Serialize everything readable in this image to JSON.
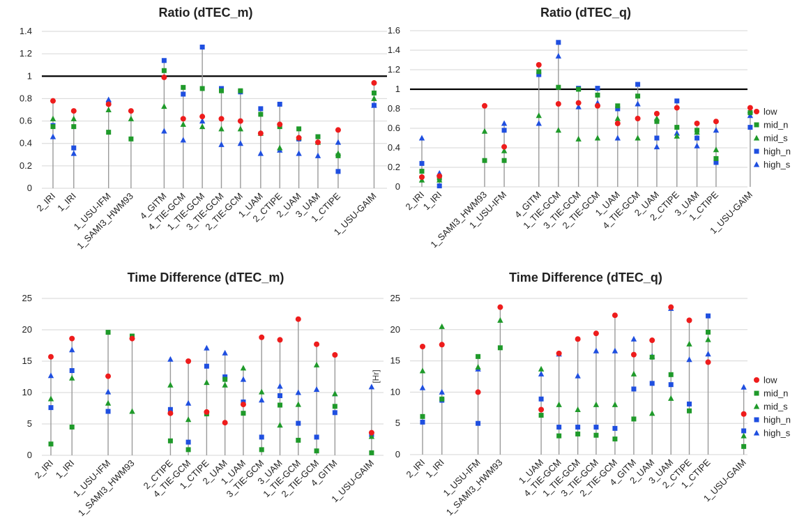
{
  "charts_meta": {
    "colors": {
      "low": "#ee1c1c",
      "mid_n": "#1f9a2a",
      "mid_s": "#1f9a2a",
      "high_n": "#1f4fe0",
      "high_s": "#1f4fe0"
    },
    "series_order": [
      "low",
      "mid_n",
      "mid_s",
      "high_n",
      "high_s"
    ],
    "legend_labels": [
      "low",
      "mid_n",
      "mid_s",
      "high_n",
      "high_s"
    ]
  },
  "chart_data": [
    {
      "type": "scatter",
      "title": "Ratio (dTEC_m)",
      "ylabel": "",
      "ylim": [
        0,
        1.4
      ],
      "yticks": [
        0,
        0.2,
        0.4,
        0.6,
        0.8,
        1,
        1.2,
        1.4
      ],
      "ytick_labels": [
        "0",
        "0.2",
        "0.4",
        "0.6",
        "0.8",
        "1",
        "1.2",
        "1.4"
      ],
      "reference_line": 1,
      "legend": false,
      "categories": [
        "2_IRI",
        "1_IRI",
        "1_USU-IFM",
        "1_SAMI3_HWM93",
        "4_GITM",
        "4_TIE-GCM",
        "1_TIE-GCM",
        "3_TIE-GCM",
        "2_TIE-GCM",
        "1_UAM",
        "2_CTIPE",
        "2_UAM",
        "3_UAM",
        "1_CTIPE",
        "1_USU-GAIM"
      ],
      "series": [
        {
          "name": "low",
          "values": [
            0.78,
            0.69,
            0.75,
            0.69,
            0.99,
            0.62,
            0.64,
            0.62,
            0.6,
            0.49,
            0.57,
            0.45,
            0.41,
            0.52,
            0.94
          ]
        },
        {
          "name": "mid_n",
          "values": [
            0.55,
            0.55,
            0.5,
            0.44,
            1.05,
            0.9,
            0.89,
            0.87,
            0.87,
            0.66,
            0.55,
            0.53,
            0.46,
            0.29,
            0.85
          ]
        },
        {
          "name": "mid_s",
          "values": [
            0.62,
            0.62,
            0.7,
            0.62,
            0.73,
            0.57,
            0.55,
            0.53,
            0.53,
            0.49,
            0.36,
            0.45,
            0.41,
            0.31,
            0.8
          ]
        },
        {
          "name": "high_n",
          "values": [
            0.56,
            0.36,
            0.76,
            null,
            1.14,
            0.84,
            1.26,
            0.89,
            0.86,
            0.71,
            0.75,
            0.44,
            0.46,
            0.15,
            0.74
          ]
        },
        {
          "name": "high_s",
          "values": [
            0.46,
            0.31,
            0.79,
            null,
            0.51,
            0.43,
            0.6,
            0.39,
            0.4,
            0.31,
            0.34,
            0.31,
            0.29,
            0.41,
            0.74
          ]
        }
      ]
    },
    {
      "type": "scatter",
      "title": "Ratio (dTEC_q)",
      "ylabel": "",
      "ylim": [
        0,
        1.6
      ],
      "yticks": [
        0,
        0.2,
        0.4,
        0.6,
        0.8,
        1,
        1.2,
        1.4,
        1.6
      ],
      "ytick_labels": [
        "0",
        "0.2",
        "0.4",
        "0.6",
        "0.8",
        "1",
        "1.2",
        "1.4",
        "1.6"
      ],
      "reference_line": 1,
      "legend": true,
      "categories": [
        "2_IRI",
        "1_IRI",
        "1_SAMI3_HWM93",
        "1_USU-IFM",
        "4_GITM",
        "1_TIE-GCM",
        "3_TIE-GCM",
        "2_TIE-GCM",
        "1_UAM",
        "4_TIE-GCM",
        "2_UAM",
        "2_CTIPE",
        "3_UAM",
        "1_CTIPE",
        "1_USU-GAIM"
      ],
      "series": [
        {
          "name": "low",
          "values": [
            0.1,
            0.11,
            0.83,
            0.41,
            1.25,
            0.85,
            0.86,
            0.83,
            0.65,
            0.7,
            0.75,
            0.81,
            0.65,
            0.67,
            0.81
          ]
        },
        {
          "name": "mid_n",
          "values": [
            0.16,
            0.09,
            0.27,
            0.27,
            1.18,
            1.02,
            1.0,
            0.94,
            0.83,
            0.93,
            0.67,
            0.61,
            0.58,
            0.29,
            0.76
          ]
        },
        {
          "name": "mid_s",
          "values": [
            0.07,
            0.07,
            0.57,
            0.37,
            0.73,
            0.58,
            0.49,
            0.5,
            0.7,
            0.5,
            0.7,
            0.52,
            0.56,
            0.38,
            0.78
          ]
        },
        {
          "name": "high_n",
          "values": [
            0.24,
            0.01,
            null,
            0.58,
            1.15,
            1.48,
            1.01,
            1.01,
            0.8,
            1.05,
            0.5,
            0.88,
            0.5,
            0.25,
            0.61
          ]
        },
        {
          "name": "high_s",
          "values": [
            0.5,
            0.14,
            null,
            0.65,
            0.65,
            1.34,
            0.82,
            0.86,
            0.5,
            0.85,
            0.41,
            0.55,
            0.42,
            0.58,
            0.73
          ]
        }
      ]
    },
    {
      "type": "scatter",
      "title": "Time Difference (dTEC_m)",
      "ylabel": "",
      "ylim": [
        0,
        25
      ],
      "yticks": [
        0,
        5,
        10,
        15,
        20,
        25
      ],
      "ytick_labels": [
        "0",
        "5",
        "10",
        "15",
        "20",
        "25"
      ],
      "reference_line": null,
      "legend": false,
      "categories": [
        "2_IRI",
        "1_IRI",
        "1_USU-IFM",
        "1_SAMI3_HWM93",
        "2_CTIPE",
        "4_TIE-GCM",
        "1_CTIPE",
        "2_UAM",
        "1_UAM",
        "3_TIE-GCM",
        "3_UAM",
        "1_TIE-GCM",
        "2_TIE-GCM",
        "4_GITM",
        "1_USU-GAIM"
      ],
      "series": [
        {
          "name": "low",
          "values": [
            15.7,
            18.6,
            12.6,
            18.6,
            6.7,
            15.0,
            6.9,
            5.2,
            8.1,
            18.8,
            18.4,
            21.7,
            17.7,
            16.0,
            3.6
          ]
        },
        {
          "name": "mid_n",
          "values": [
            1.8,
            4.5,
            19.6,
            19.0,
            2.3,
            0.9,
            6.6,
            12.1,
            6.7,
            0.9,
            8.0,
            2.4,
            0.7,
            7.8,
            0.4
          ]
        },
        {
          "name": "mid_s",
          "values": [
            9.0,
            12.3,
            8.3,
            7.0,
            11.2,
            5.7,
            11.6,
            11.2,
            13.9,
            10.1,
            4.8,
            8.1,
            14.4,
            9.8,
            3.0
          ]
        },
        {
          "name": "high_n",
          "values": [
            7.6,
            13.5,
            7.0,
            null,
            7.3,
            2.1,
            14.2,
            12.5,
            8.5,
            2.9,
            9.5,
            5.1,
            2.9,
            6.8,
            3.3
          ]
        },
        {
          "name": "high_s",
          "values": [
            12.7,
            16.8,
            10.1,
            null,
            15.3,
            8.3,
            17.1,
            16.3,
            12.1,
            8.8,
            11.0,
            10.0,
            10.5,
            9.8,
            10.9
          ]
        }
      ]
    },
    {
      "type": "scatter",
      "title": "Time Difference (dTEC_q)",
      "ylabel": "[Hr]",
      "ylim": [
        0,
        25
      ],
      "yticks": [
        0,
        5,
        10,
        15,
        20,
        25
      ],
      "ytick_labels": [
        "0",
        "5",
        "10",
        "15",
        "20",
        "25"
      ],
      "reference_line": null,
      "legend": true,
      "categories": [
        "2_IRI",
        "1_IRI",
        "1_USU-IFM",
        "1_SAMI3_HWM93",
        "1_UAM",
        "4_TIE-GCM",
        "1_TIE-GCM",
        "3_TIE-GCM",
        "2_TIE-GCM",
        "4_GITM",
        "2_UAM",
        "3_UAM",
        "2_CTIPE",
        "1_CTIPE",
        "1_USU-GAIM"
      ],
      "series": [
        {
          "name": "low",
          "values": [
            17.3,
            17.6,
            10.0,
            23.6,
            7.2,
            16.2,
            18.5,
            19.4,
            22.3,
            16.0,
            18.3,
            23.6,
            21.5,
            14.8,
            6.5
          ]
        },
        {
          "name": "mid_n",
          "values": [
            6.1,
            8.9,
            15.7,
            17.1,
            6.3,
            3.0,
            3.3,
            3.1,
            2.5,
            5.7,
            15.6,
            12.8,
            7.0,
            19.6,
            1.3
          ]
        },
        {
          "name": "mid_s",
          "values": [
            13.4,
            20.5,
            14.0,
            21.5,
            13.7,
            8.0,
            7.2,
            8.0,
            8.0,
            12.9,
            6.6,
            9.0,
            17.7,
            18.4,
            3.0
          ]
        },
        {
          "name": "high_n",
          "values": [
            5.2,
            8.7,
            5.0,
            null,
            8.9,
            4.4,
            4.4,
            4.4,
            4.2,
            10.5,
            11.4,
            11.2,
            8.1,
            22.2,
            3.8
          ]
        },
        {
          "name": "high_s",
          "values": [
            10.7,
            10.0,
            13.7,
            null,
            12.9,
            16.1,
            12.6,
            16.6,
            16.6,
            18.5,
            15.7,
            23.4,
            15.2,
            16.1,
            10.8
          ]
        }
      ]
    }
  ]
}
